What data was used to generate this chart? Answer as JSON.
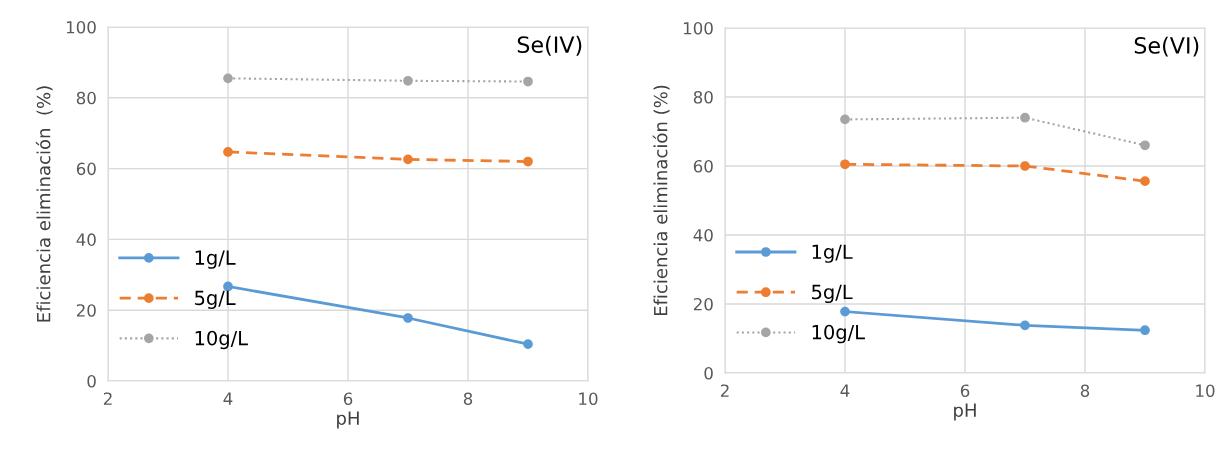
{
  "chart_data": [
    {
      "type": "line",
      "xlabel": "pH",
      "ylabel": "Eficiencia eliminación  (%)",
      "xlim": [
        2,
        10
      ],
      "xticks": [
        2,
        4,
        6,
        8,
        10
      ],
      "ylim": [
        0,
        100
      ],
      "yticks": [
        0,
        20,
        40,
        60,
        80,
        100
      ],
      "grid": true,
      "legend": "left",
      "marker": "circle",
      "annotations": [
        "Se(IV)"
      ],
      "x": [
        4,
        7,
        9
      ],
      "series": [
        {
          "name": "1g/L",
          "color": "#5b9bd5",
          "line_style": "solid",
          "values": [
            26.7,
            17.8,
            10.4
          ]
        },
        {
          "name": "5g/L",
          "color": "#ed7d31",
          "line_style": "dashed",
          "values": [
            64.7,
            62.6,
            62.0
          ]
        },
        {
          "name": "10g/L",
          "color": "#a5a5a5",
          "line_style": "dotted",
          "values": [
            85.5,
            84.8,
            84.6
          ]
        }
      ]
    },
    {
      "type": "line",
      "xlabel": "pH",
      "ylabel": "Eficiencia eliminación (%)",
      "xlim": [
        2,
        10
      ],
      "xticks": [
        2,
        4,
        6,
        8,
        10
      ],
      "ylim": [
        0,
        100
      ],
      "yticks": [
        0,
        20,
        40,
        60,
        80,
        100
      ],
      "grid": true,
      "legend": "left",
      "marker": "circle",
      "annotations": [
        "Se(VI)"
      ],
      "x": [
        4,
        7,
        9
      ],
      "series": [
        {
          "name": "1g/L",
          "color": "#5b9bd5",
          "line_style": "solid",
          "values": [
            17.8,
            13.8,
            12.4
          ]
        },
        {
          "name": "5g/L",
          "color": "#ed7d31",
          "line_style": "dashed",
          "values": [
            60.5,
            60.0,
            55.6
          ]
        },
        {
          "name": "10g/L",
          "color": "#a5a5a5",
          "line_style": "dotted",
          "values": [
            73.5,
            74.0,
            66.0
          ]
        }
      ]
    }
  ]
}
